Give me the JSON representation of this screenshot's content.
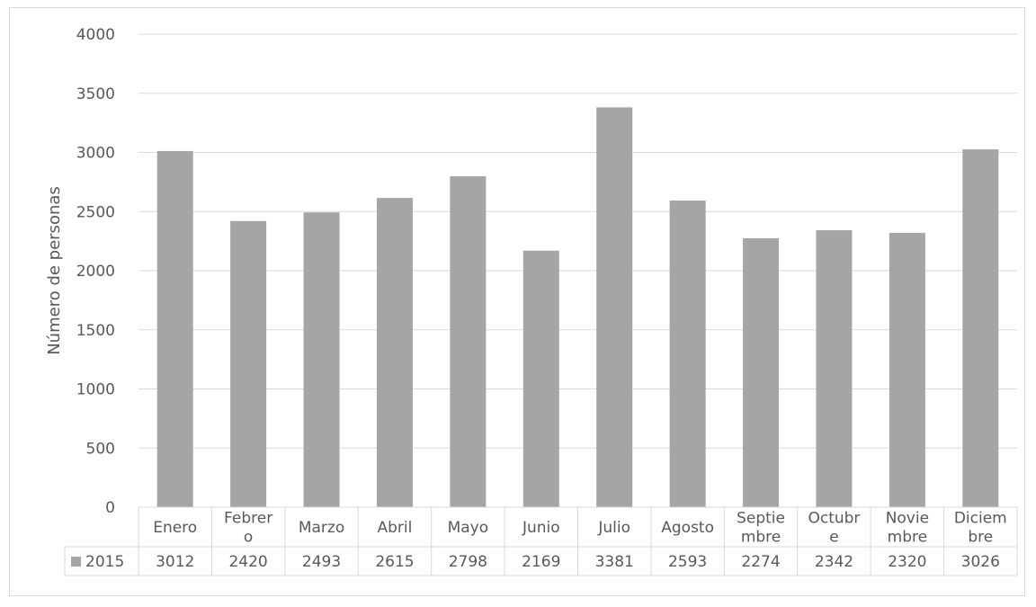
{
  "chart_data": {
    "type": "bar",
    "title": "",
    "xlabel": "",
    "ylabel": "Número de personas",
    "ylim": [
      0,
      4000
    ],
    "yticks": [
      "0",
      "500",
      "1000",
      "1500",
      "2000",
      "2500",
      "3000",
      "3500",
      "4000"
    ],
    "grid": true,
    "categories": [
      [
        "Enero"
      ],
      [
        "Febrer",
        "o"
      ],
      [
        "Marzo"
      ],
      [
        "Abril"
      ],
      [
        "Mayo"
      ],
      [
        "Junio"
      ],
      [
        "Julio"
      ],
      [
        "Agosto"
      ],
      [
        "Septie",
        "mbre"
      ],
      [
        "Octubr",
        "e"
      ],
      [
        "Novie",
        "mbre"
      ],
      [
        "Diciem",
        "bre"
      ]
    ],
    "series": [
      {
        "name": "2015",
        "color": "#a5a5a5",
        "values": [
          3012,
          2420,
          2493,
          2615,
          2798,
          2169,
          3381,
          2593,
          2274,
          2342,
          2320,
          3026
        ]
      }
    ],
    "data_table": true
  }
}
